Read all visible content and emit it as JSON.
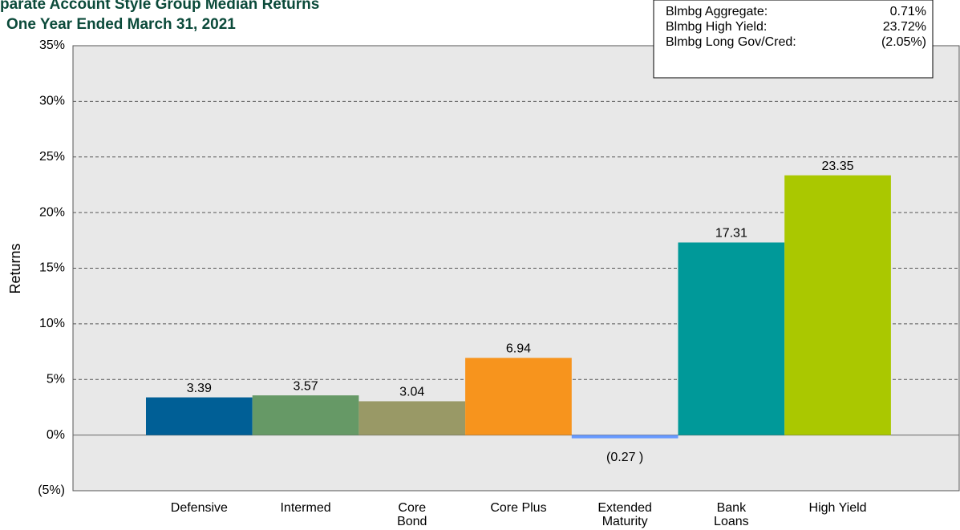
{
  "chart_data": {
    "type": "bar",
    "title": "parate Account Style Group Median Returns",
    "subtitle": "One Year Ended March 31, 2021",
    "y_label": "Returns",
    "categories": [
      "Defensive",
      "Intermed",
      "Core\nBond",
      "Core Plus",
      "Extended\nMaturity",
      "Bank\nLoans",
      "High Yield"
    ],
    "values": [
      3.39,
      3.57,
      3.04,
      6.94,
      -0.27,
      17.31,
      23.35
    ],
    "value_labels": [
      "3.39",
      "3.57",
      "3.04",
      "6.94",
      "(0.27 )",
      "17.31",
      "23.35"
    ],
    "colors": [
      "#005f96",
      "#669966",
      "#999966",
      "#f7941d",
      "#6699ff",
      "#009999",
      "#aac800"
    ],
    "negative_color": "#ff0000",
    "ylim": [
      -5,
      35
    ],
    "yticks": [
      {
        "value": -5,
        "label": "(5%)"
      },
      {
        "value": 0,
        "label": "0%"
      },
      {
        "value": 5,
        "label": "5%"
      },
      {
        "value": 10,
        "label": "10%"
      },
      {
        "value": 15,
        "label": "15%"
      },
      {
        "value": 20,
        "label": "20%"
      },
      {
        "value": 25,
        "label": "25%"
      },
      {
        "value": 30,
        "label": "30%"
      },
      {
        "value": 35,
        "label": "35%"
      }
    ],
    "grid": true,
    "benchmarks": [
      {
        "name": "Blmbg Aggregate:",
        "value": "0.71%"
      },
      {
        "name": "Blmbg High Yield:",
        "value": "23.72%"
      },
      {
        "name": "Blmbg Long Gov/Cred:",
        "value": "(2.05%)",
        "negative": true
      }
    ]
  }
}
